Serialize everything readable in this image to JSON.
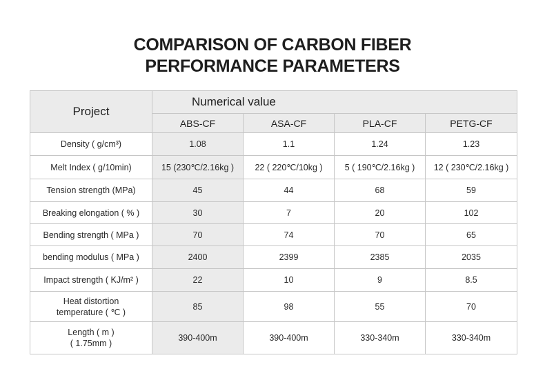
{
  "title": {
    "line1": "COMPARISON OF CARBON FIBER",
    "line2": "PERFORMANCE PARAMETERS"
  },
  "table": {
    "project_header": "Project",
    "value_header": "Numerical value",
    "columns": [
      "ABS-CF",
      "ASA-CF",
      "PLA-CF",
      "PETG-CF"
    ],
    "rows": [
      {
        "label": "Density ( g/cm³)",
        "label2": "",
        "values": [
          "1.08",
          "1.1",
          "1.24",
          "1.23"
        ]
      },
      {
        "label": "Melt Index ( g/10min)",
        "label2": "",
        "values": [
          "15 (230℃/2.16kg )",
          "22 ( 220℃/10kg )",
          "5 ( 190℃/2.16kg )",
          "12 ( 230℃/2.16kg )"
        ]
      },
      {
        "label": "Tension strength (MPa)",
        "label2": "",
        "values": [
          "45",
          "44",
          "68",
          "59"
        ]
      },
      {
        "label": "Breaking elongation ( % )",
        "label2": "",
        "values": [
          "30",
          "7",
          "20",
          "102"
        ]
      },
      {
        "label": "Bending strength ( MPa )",
        "label2": "",
        "values": [
          "70",
          "74",
          "70",
          "65"
        ]
      },
      {
        "label": "bending modulus ( MPa )",
        "label2": "",
        "values": [
          "2400",
          "2399",
          "2385",
          "2035"
        ]
      },
      {
        "label": "Impact strength ( KJ/m² )",
        "label2": "",
        "values": [
          "22",
          "10",
          "9",
          "8.5"
        ]
      },
      {
        "label": "Heat distortion",
        "label2": "temperature ( ℃ )",
        "values": [
          "85",
          "98",
          "55",
          "70"
        ]
      },
      {
        "label": "Length ( m )",
        "label2": "( 1.75mm )",
        "values": [
          "390-400m",
          "390-400m",
          "330-340m",
          "330-340m"
        ]
      }
    ]
  }
}
